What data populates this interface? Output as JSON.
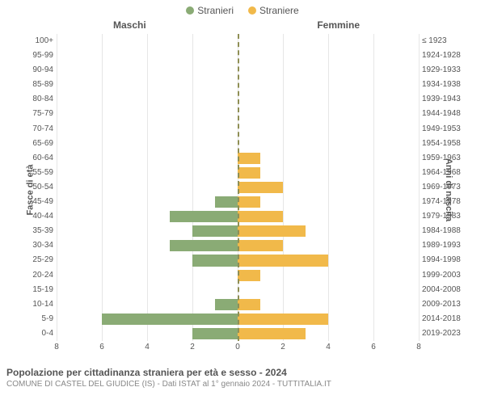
{
  "type": "population-pyramid",
  "legend": {
    "male": {
      "label": "Stranieri",
      "color": "#8aab75"
    },
    "female": {
      "label": "Straniere",
      "color": "#f1b94a"
    }
  },
  "column_headers": {
    "left": "Maschi",
    "right": "Femmine"
  },
  "axis_titles": {
    "left": "Fasce di età",
    "right": "Anni di nascita"
  },
  "x_axis": {
    "max": 8,
    "ticks": [
      8,
      6,
      4,
      2,
      0,
      2,
      4,
      6,
      8
    ],
    "tick_step": 2,
    "grid_color": "#e6e6e6",
    "center_color": "#8f8f55"
  },
  "rows": [
    {
      "age": "100+",
      "birth": "≤ 1923",
      "m": 0,
      "f": 0
    },
    {
      "age": "95-99",
      "birth": "1924-1928",
      "m": 0,
      "f": 0
    },
    {
      "age": "90-94",
      "birth": "1929-1933",
      "m": 0,
      "f": 0
    },
    {
      "age": "85-89",
      "birth": "1934-1938",
      "m": 0,
      "f": 0
    },
    {
      "age": "80-84",
      "birth": "1939-1943",
      "m": 0,
      "f": 0
    },
    {
      "age": "75-79",
      "birth": "1944-1948",
      "m": 0,
      "f": 0
    },
    {
      "age": "70-74",
      "birth": "1949-1953",
      "m": 0,
      "f": 0
    },
    {
      "age": "65-69",
      "birth": "1954-1958",
      "m": 0,
      "f": 0
    },
    {
      "age": "60-64",
      "birth": "1959-1963",
      "m": 0,
      "f": 1
    },
    {
      "age": "55-59",
      "birth": "1964-1968",
      "m": 0,
      "f": 1
    },
    {
      "age": "50-54",
      "birth": "1969-1973",
      "m": 0,
      "f": 2
    },
    {
      "age": "45-49",
      "birth": "1974-1978",
      "m": 1,
      "f": 1
    },
    {
      "age": "40-44",
      "birth": "1979-1983",
      "m": 3,
      "f": 2
    },
    {
      "age": "35-39",
      "birth": "1984-1988",
      "m": 2,
      "f": 3
    },
    {
      "age": "30-34",
      "birth": "1989-1993",
      "m": 3,
      "f": 2
    },
    {
      "age": "25-29",
      "birth": "1994-1998",
      "m": 2,
      "f": 4
    },
    {
      "age": "20-24",
      "birth": "1999-2003",
      "m": 0,
      "f": 1
    },
    {
      "age": "15-19",
      "birth": "2004-2008",
      "m": 0,
      "f": 0
    },
    {
      "age": "10-14",
      "birth": "2009-2013",
      "m": 1,
      "f": 1
    },
    {
      "age": "5-9",
      "birth": "2014-2018",
      "m": 6,
      "f": 4
    },
    {
      "age": "0-4",
      "birth": "2019-2023",
      "m": 2,
      "f": 3
    }
  ],
  "caption": {
    "title": "Popolazione per cittadinanza straniera per età e sesso - 2024",
    "subtitle": "COMUNE DI CASTEL DEL GIUDICE (IS) - Dati ISTAT al 1° gennaio 2024 - TUTTITALIA.IT"
  },
  "typography": {
    "font_family": "Arial",
    "tick_fontsize_pt": 8,
    "header_fontsize_pt": 9,
    "caption_title_pt": 9,
    "caption_sub_pt": 8
  },
  "background_color": "#ffffff"
}
